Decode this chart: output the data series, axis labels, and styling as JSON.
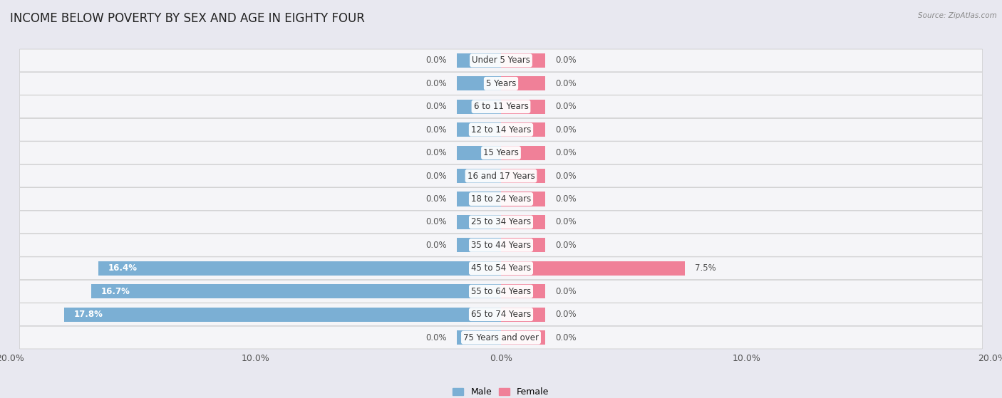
{
  "title": "INCOME BELOW POVERTY BY SEX AND AGE IN EIGHTY FOUR",
  "source": "Source: ZipAtlas.com",
  "categories": [
    "Under 5 Years",
    "5 Years",
    "6 to 11 Years",
    "12 to 14 Years",
    "15 Years",
    "16 and 17 Years",
    "18 to 24 Years",
    "25 to 34 Years",
    "35 to 44 Years",
    "45 to 54 Years",
    "55 to 64 Years",
    "65 to 74 Years",
    "75 Years and over"
  ],
  "male_values": [
    0.0,
    0.0,
    0.0,
    0.0,
    0.0,
    0.0,
    0.0,
    0.0,
    0.0,
    16.4,
    16.7,
    17.8,
    0.0
  ],
  "female_values": [
    0.0,
    0.0,
    0.0,
    0.0,
    0.0,
    0.0,
    0.0,
    0.0,
    0.0,
    7.5,
    0.0,
    0.0,
    0.0
  ],
  "male_color": "#7bafd4",
  "female_color": "#f08098",
  "male_label": "Male",
  "female_label": "Female",
  "xlim": 20.0,
  "background_color": "#e8e8f0",
  "row_bg_color": "#f5f5f8",
  "title_fontsize": 12,
  "label_fontsize": 8.5,
  "tick_fontsize": 9,
  "bar_height": 0.62,
  "stub_size": 1.8
}
